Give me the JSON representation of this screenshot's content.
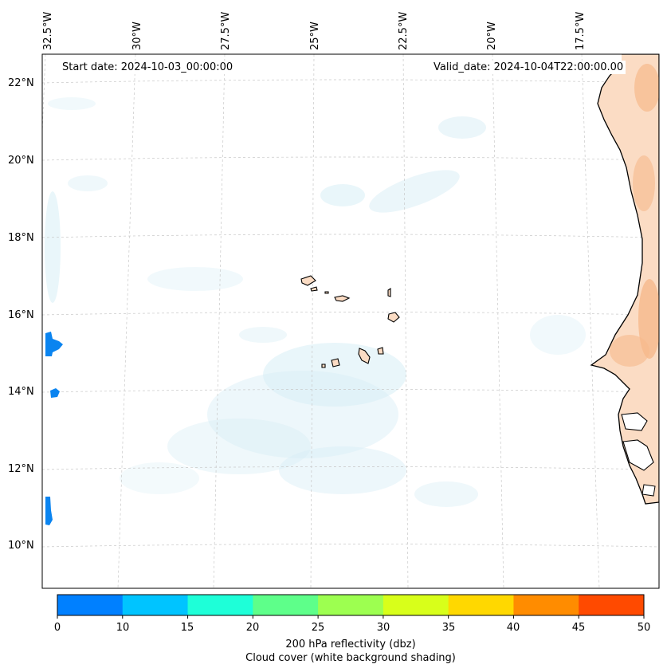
{
  "map": {
    "start_date_label": "Start date: 2024-10-03_00:00:00",
    "valid_date_label": "Valid_date: 2024-10-04T22:00:00.00",
    "longitude_labels": [
      "32.5°W",
      "30°W",
      "27.5°W",
      "25°W",
      "22.5°W",
      "20°W",
      "17.5°W"
    ],
    "latitude_labels": [
      "22°N",
      "20°N",
      "18°N",
      "16°N",
      "14°N",
      "12°N",
      "10°N"
    ]
  },
  "colorbar": {
    "ticks": [
      "0",
      "10",
      "15",
      "20",
      "25",
      "30",
      "35",
      "40",
      "45",
      "50"
    ],
    "colors": [
      "#0080ff",
      "#00c4ff",
      "#1effd8",
      "#5eff8a",
      "#9dff50",
      "#d8ff1a",
      "#ffd800",
      "#ff8c00",
      "#ff4a00"
    ],
    "label_line1": "200 hPa reflectivity (dbz)",
    "label_line2": "Cloud cover (white background shading)"
  },
  "colors": {
    "land": "#fbdcc4",
    "land_shade": "#f6b98c",
    "cloud": "#d7eef6",
    "reflectivity": "#0a84f0"
  }
}
